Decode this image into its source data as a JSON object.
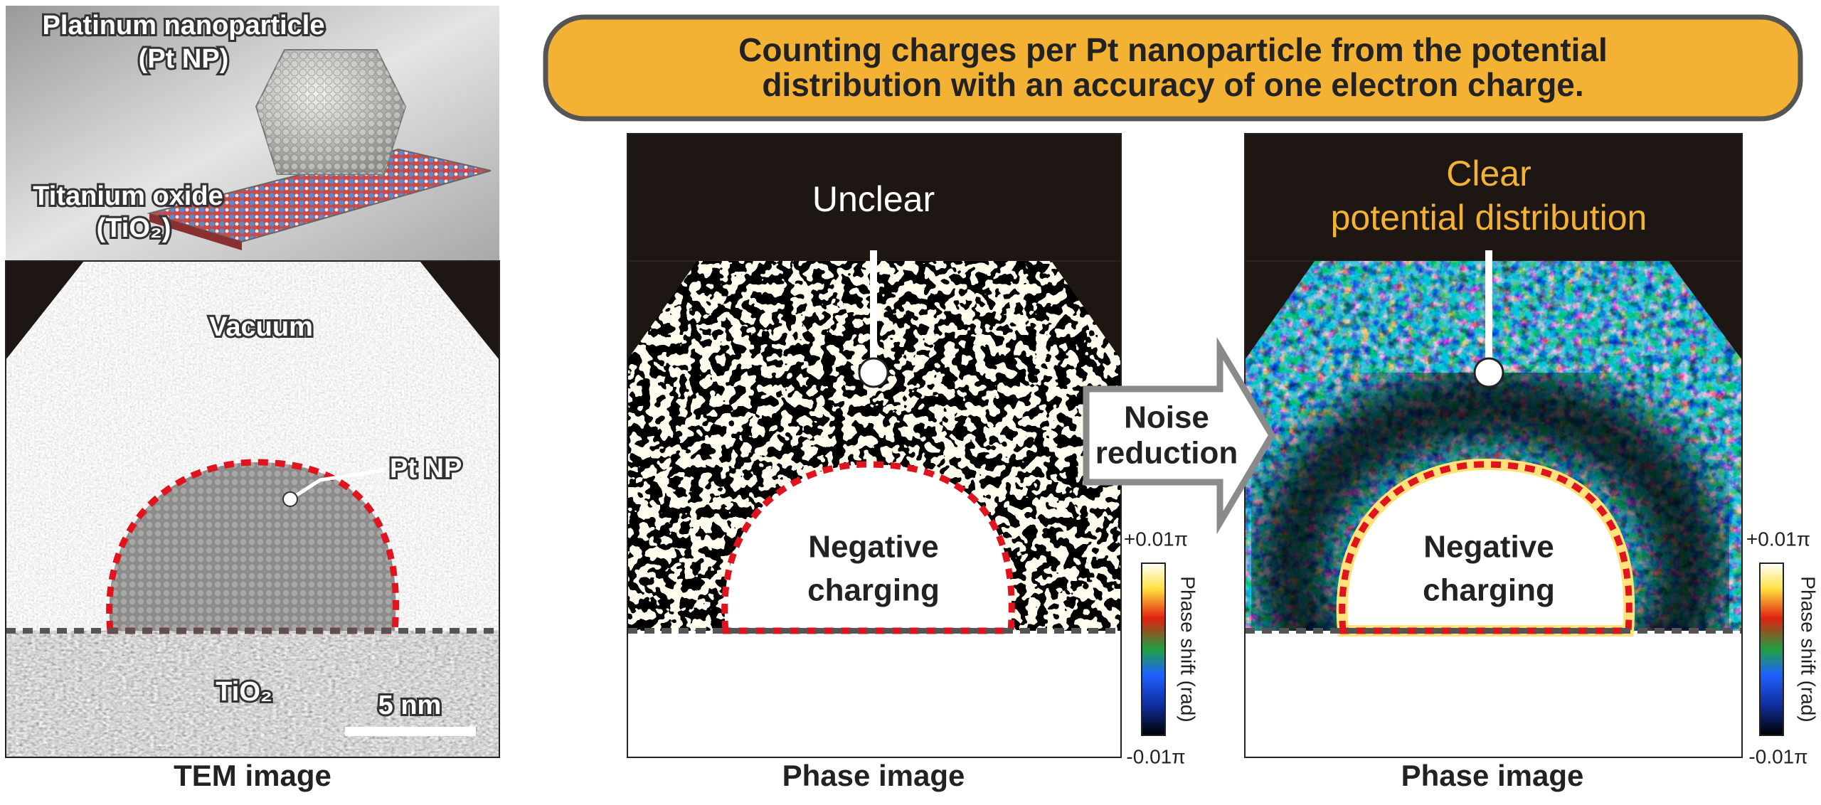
{
  "illustration": {
    "particle_label": [
      "Platinum nanoparticle",
      "(Pt NP)"
    ],
    "substrate_label": [
      "Titanium oxide",
      "(TiO₂)"
    ]
  },
  "tem_image": {
    "vacuum": "Vacuum",
    "particle": "Pt NP",
    "substrate": "TiO₂",
    "scale_bar": "5 nm",
    "caption": "TEM image"
  },
  "banner": {
    "lines": [
      "Counting charges per Pt nanoparticle from the potential",
      "distribution with an accuracy of one electron charge."
    ]
  },
  "arrow": {
    "label": [
      "Noise",
      "reduction"
    ]
  },
  "phase_images": [
    {
      "heading": [
        "Unclear"
      ],
      "region_label": [
        "Negative",
        "charging"
      ],
      "caption": "Phase image",
      "colorbar": {
        "max": "+0.01π",
        "min": "-0.01π",
        "title": "Phase shift (rad)"
      }
    },
    {
      "heading": [
        "Clear",
        "potential distribution"
      ],
      "region_label": [
        "Negative",
        "charging"
      ],
      "caption": "Phase image",
      "colorbar": {
        "max": "+0.01π",
        "min": "-0.01π",
        "title": "Phase shift (rad)"
      }
    }
  ]
}
